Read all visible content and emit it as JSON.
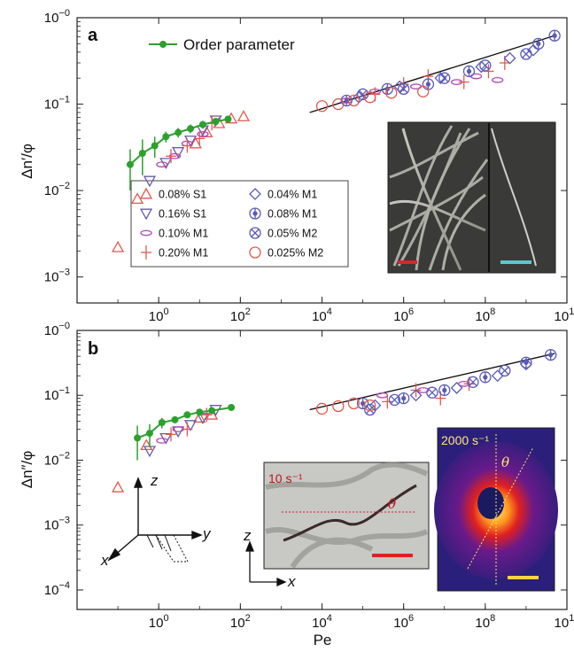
{
  "chart_data": [
    {
      "type": "scatter",
      "panel_label": "a",
      "xlabel": "",
      "ylabel": "Δn′/φ",
      "xscale": "log",
      "yscale": "log",
      "xlim": [
        0.01,
        10000000000
      ],
      "ylim": [
        0.0005,
        1.0
      ],
      "x_tick_values": [
        1,
        100,
        10000,
        1000000,
        100000000,
        10000000000
      ],
      "x_tick_labels": [
        "10^0",
        "10^2",
        "10^4",
        "10^6",
        "10^8",
        "10^10"
      ],
      "y_tick_values": [
        0.001,
        0.01,
        0.1,
        1
      ],
      "y_tick_labels": [
        "10^-3",
        "10^-2",
        "10^-1",
        "10^-0"
      ],
      "line_legend": "Order parameter",
      "legend_placement": "bottom-left",
      "fit_line": {
        "x": [
          5000,
          5000000000
        ],
        "y": [
          0.08,
          0.62
        ]
      },
      "order_parameter": {
        "x": [
          0.2,
          0.4,
          0.8,
          1.5,
          3,
          6,
          12,
          25,
          50
        ],
        "y": [
          0.02,
          0.027,
          0.033,
          0.042,
          0.047,
          0.052,
          0.058,
          0.063,
          0.067
        ],
        "err": [
          0.01,
          0.012,
          0.009,
          0.006,
          0.006,
          0.006,
          0.006,
          0.006,
          0.006
        ]
      },
      "series": [
        {
          "name": "0.08% S1",
          "marker": "tri-up",
          "color": "#e05a4e",
          "x": [
            0.1,
            0.3,
            8,
            15,
            30,
            60,
            120
          ],
          "y": [
            0.0022,
            0.008,
            0.035,
            0.047,
            0.06,
            0.068,
            0.072
          ]
        },
        {
          "name": "0.16% S1",
          "marker": "tri-down",
          "color": "#6a5aa8",
          "x": [
            0.6,
            1.5,
            3,
            6,
            12,
            25
          ],
          "y": [
            0.013,
            0.021,
            0.028,
            0.038,
            0.05,
            0.065
          ]
        },
        {
          "name": "0.10% M1",
          "marker": "ellipse",
          "color": "#b548b8",
          "x": [
            1.2,
            2.5,
            5,
            12,
            40000,
            200000,
            2000000,
            20000000,
            60000000,
            200000000
          ],
          "y": [
            0.02,
            0.025,
            0.035,
            0.045,
            0.11,
            0.14,
            0.16,
            0.18,
            0.21,
            0.19
          ]
        },
        {
          "name": "0.20% M1",
          "marker": "plus",
          "color": "#e05a4e",
          "x": [
            2,
            5,
            10,
            20,
            200000,
            1000000,
            4000000,
            30000000,
            120000000,
            300000000
          ],
          "y": [
            0.025,
            0.033,
            0.04,
            0.06,
            0.13,
            0.17,
            0.21,
            0.18,
            0.24,
            0.3
          ]
        },
        {
          "name": "0.04% M1",
          "marker": "diamond",
          "color": "#5a5ab8",
          "x": [
            80000,
            800000,
            8000000,
            80000000,
            400000000,
            1500000000
          ],
          "y": [
            0.12,
            0.16,
            0.2,
            0.27,
            0.34,
            0.42
          ]
        },
        {
          "name": "0.08% M1",
          "marker": "circle-dot",
          "color": "#5a5ab8",
          "x": [
            40000,
            400000,
            4000000,
            40000000,
            2000000000,
            5000000000
          ],
          "y": [
            0.11,
            0.15,
            0.17,
            0.24,
            0.5,
            0.62
          ]
        },
        {
          "name": "0.05% M2",
          "marker": "circle-x",
          "color": "#5a5ab8",
          "x": [
            100000,
            1000000,
            10000000,
            100000000,
            1000000000
          ],
          "y": [
            0.13,
            0.15,
            0.2,
            0.28,
            0.38
          ]
        },
        {
          "name": "0.025% M2",
          "marker": "circle",
          "color": "#e05a4e",
          "x": [
            10000,
            25000,
            60000,
            150000,
            500000,
            3000000
          ],
          "y": [
            0.095,
            0.1,
            0.11,
            0.12,
            0.135,
            0.14
          ]
        }
      ]
    },
    {
      "type": "scatter",
      "panel_label": "b",
      "xlabel": "Pe",
      "ylabel": "Δn″/φ",
      "xscale": "log",
      "yscale": "log",
      "xlim": [
        0.01,
        10000000000
      ],
      "ylim": [
        5e-05,
        1.0
      ],
      "x_tick_values": [
        1,
        100,
        10000,
        1000000,
        100000000,
        10000000000
      ],
      "x_tick_labels": [
        "10^0",
        "10^2",
        "10^4",
        "10^6",
        "10^8",
        "10^10"
      ],
      "y_tick_values": [
        0.0001,
        0.001,
        0.01,
        0.1,
        1
      ],
      "y_tick_labels": [
        "10^-4",
        "10^-3",
        "10^-2",
        "10^-1",
        "10^-0"
      ],
      "fit_line": {
        "x": [
          5000,
          5000000000
        ],
        "y": [
          0.06,
          0.44
        ]
      },
      "order_parameter": {
        "x": [
          0.3,
          0.6,
          1.2,
          2.5,
          5,
          10,
          20,
          60
        ],
        "y": [
          0.022,
          0.026,
          0.038,
          0.042,
          0.05,
          0.055,
          0.058,
          0.065
        ],
        "err": [
          0.012,
          0.01,
          0.007,
          0.005,
          0.005,
          0.004,
          0.004,
          0.004
        ]
      },
      "series": [
        {
          "name": "0.08% S1",
          "marker": "tri-up",
          "color": "#e05a4e",
          "x": [
            0.1,
            0.5,
            10,
            20
          ],
          "y": [
            0.0038,
            0.017,
            0.045,
            0.05
          ]
        },
        {
          "name": "0.16% S1",
          "marker": "tri-down",
          "color": "#6a5aa8",
          "x": [
            0.6,
            1.5,
            3,
            6,
            12,
            25
          ],
          "y": [
            0.014,
            0.022,
            0.028,
            0.035,
            0.045,
            0.06
          ]
        },
        {
          "name": "0.10% M1",
          "marker": "ellipse",
          "color": "#b548b8",
          "x": [
            1.2,
            3,
            300000,
            3000000,
            30000000
          ],
          "y": [
            0.02,
            0.03,
            0.1,
            0.12,
            0.15
          ]
        },
        {
          "name": "0.20% M1",
          "marker": "plus",
          "color": "#e05a4e",
          "x": [
            2,
            5,
            15,
            400000,
            2000000,
            8000000,
            40000000
          ],
          "y": [
            0.025,
            0.03,
            0.05,
            0.08,
            0.12,
            0.09,
            0.15
          ]
        },
        {
          "name": "0.04% M1",
          "marker": "diamond",
          "color": "#5a5ab8",
          "x": [
            200000,
            2000000,
            20000000,
            200000000,
            1000000000
          ],
          "y": [
            0.07,
            0.1,
            0.13,
            0.2,
            0.3
          ]
        },
        {
          "name": "0.08% M1",
          "marker": "circle-dot",
          "color": "#5a5ab8",
          "x": [
            100000,
            1000000,
            10000000,
            100000000,
            1000000000,
            4000000000
          ],
          "y": [
            0.075,
            0.09,
            0.12,
            0.19,
            0.32,
            0.42
          ]
        },
        {
          "name": "0.05% M2",
          "marker": "circle-x",
          "color": "#5a5ab8",
          "x": [
            150000,
            600000,
            5000000,
            50000000,
            300000000
          ],
          "y": [
            0.06,
            0.085,
            0.11,
            0.16,
            0.24
          ]
        },
        {
          "name": "0.025% M2",
          "marker": "circle",
          "color": "#e05a4e",
          "x": [
            10000,
            25000,
            60000,
            150000
          ],
          "y": [
            0.062,
            0.068,
            0.075,
            0.07
          ]
        }
      ],
      "insets": [
        {
          "label": "10 s⁻¹",
          "angle_label": "θ",
          "axes": [
            "z",
            "x"
          ]
        },
        {
          "label": "2000 s⁻¹",
          "angle_label": "θ"
        }
      ],
      "coordinate_axes": [
        "z",
        "y",
        "x"
      ]
    }
  ]
}
